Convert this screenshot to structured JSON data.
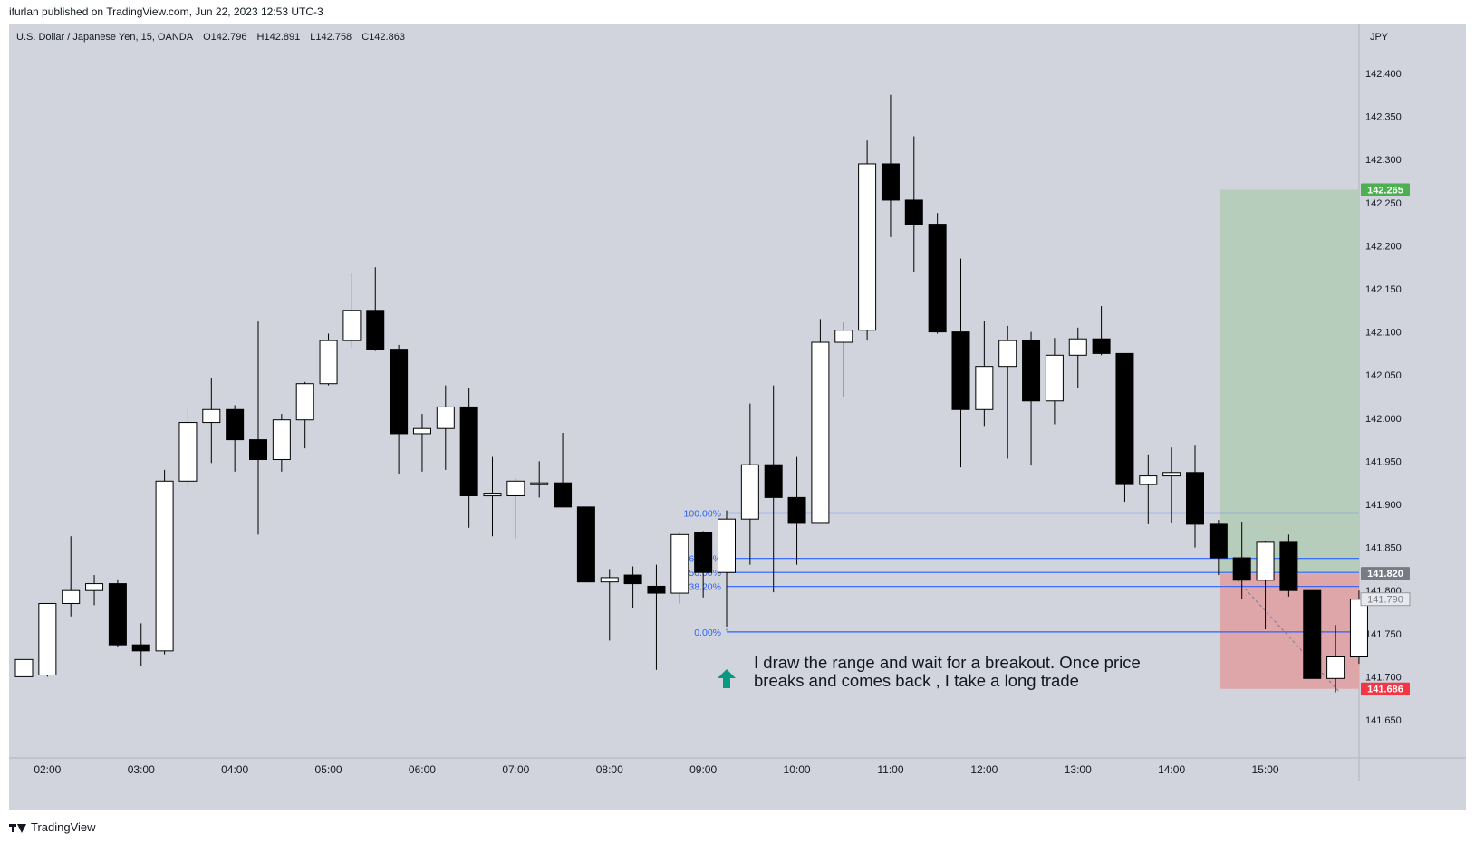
{
  "header": {
    "published_by": "ifurlan published on TradingView.com, Jun 22, 2023 12:53 UTC-3"
  },
  "symbol_bar": {
    "title": "U.S. Dollar / Japanese Yen, 15, OANDA",
    "open": "O142.796",
    "high": "H142.891",
    "low": "L142.758",
    "close": "C142.863"
  },
  "footer": {
    "brand": "TradingView"
  },
  "annotation": {
    "line1": "I draw the range and wait for a breakout. Once price",
    "line2": "breaks and comes back , I take a long trade",
    "icon": "arrow-up-icon"
  },
  "colors": {
    "background": "#d1d4dc",
    "bull_candle": "#ffffff",
    "bear_candle": "#000000",
    "fib_line": "#2962ff",
    "target_zone": "#b4ccb8",
    "stop_zone": "#e0a1a4",
    "target_label": "#4caf50",
    "stop_label": "#f23645",
    "entry_label": "#787b86",
    "arrow": "#089981"
  },
  "chart_data": {
    "type": "candlestick",
    "title": "",
    "xlabel": "",
    "ylabel": "",
    "y_axis_unit": "JPY",
    "ylim": [
      141.62,
      142.45
    ],
    "y_ticks": [
      "142.400",
      "142.350",
      "142.300",
      "142.250",
      "142.200",
      "142.150",
      "142.100",
      "142.050",
      "142.000",
      "141.950",
      "141.900",
      "141.850",
      "141.800",
      "141.750",
      "141.700",
      "141.650"
    ],
    "x_ticks": [
      "02:00",
      "03:00",
      "04:00",
      "05:00",
      "06:00",
      "07:00",
      "08:00",
      "09:00",
      "10:00",
      "11:00",
      "12:00",
      "13:00",
      "14:00",
      "15:00"
    ],
    "first_candle_time": "01:45",
    "interval_minutes": 15,
    "candles": [
      {
        "o": 141.7,
        "h": 141.732,
        "l": 141.682,
        "c": 141.72
      },
      {
        "o": 141.702,
        "h": 141.785,
        "l": 141.7,
        "c": 141.785
      },
      {
        "o": 141.785,
        "h": 141.863,
        "l": 141.77,
        "c": 141.8
      },
      {
        "o": 141.8,
        "h": 141.818,
        "l": 141.783,
        "c": 141.808
      },
      {
        "o": 141.808,
        "h": 141.813,
        "l": 141.735,
        "c": 141.737
      },
      {
        "o": 141.737,
        "h": 141.762,
        "l": 141.713,
        "c": 141.73
      },
      {
        "o": 141.73,
        "h": 141.94,
        "l": 141.726,
        "c": 141.927
      },
      {
        "o": 141.927,
        "h": 142.012,
        "l": 141.92,
        "c": 141.995
      },
      {
        "o": 141.995,
        "h": 142.047,
        "l": 141.948,
        "c": 142.01
      },
      {
        "o": 142.01,
        "h": 142.015,
        "l": 141.938,
        "c": 141.975
      },
      {
        "o": 141.975,
        "h": 142.112,
        "l": 141.865,
        "c": 141.952
      },
      {
        "o": 141.952,
        "h": 142.005,
        "l": 141.938,
        "c": 141.998
      },
      {
        "o": 141.998,
        "h": 142.042,
        "l": 141.965,
        "c": 142.04
      },
      {
        "o": 142.04,
        "h": 142.098,
        "l": 142.038,
        "c": 142.09
      },
      {
        "o": 142.09,
        "h": 142.168,
        "l": 142.082,
        "c": 142.125
      },
      {
        "o": 142.125,
        "h": 142.175,
        "l": 142.078,
        "c": 142.08
      },
      {
        "o": 142.08,
        "h": 142.085,
        "l": 141.935,
        "c": 141.982
      },
      {
        "o": 141.982,
        "h": 142.005,
        "l": 141.938,
        "c": 141.988
      },
      {
        "o": 141.988,
        "h": 142.038,
        "l": 141.94,
        "c": 142.013
      },
      {
        "o": 142.013,
        "h": 142.035,
        "l": 141.873,
        "c": 141.91
      },
      {
        "o": 141.91,
        "h": 141.955,
        "l": 141.863,
        "c": 141.912
      },
      {
        "o": 141.91,
        "h": 141.93,
        "l": 141.86,
        "c": 141.927
      },
      {
        "o": 141.925,
        "h": 141.95,
        "l": 141.908,
        "c": 141.925
      },
      {
        "o": 141.925,
        "h": 141.983,
        "l": 141.9,
        "c": 141.897
      },
      {
        "o": 141.897,
        "h": 141.897,
        "l": 141.81,
        "c": 141.81
      },
      {
        "o": 141.81,
        "h": 141.825,
        "l": 141.742,
        "c": 141.815
      },
      {
        "o": 141.818,
        "h": 141.828,
        "l": 141.78,
        "c": 141.808
      },
      {
        "o": 141.805,
        "h": 141.83,
        "l": 141.708,
        "c": 141.797
      },
      {
        "o": 141.797,
        "h": 141.867,
        "l": 141.785,
        "c": 141.865
      },
      {
        "o": 141.867,
        "h": 141.869,
        "l": 141.792,
        "c": 141.821
      },
      {
        "o": 141.821,
        "h": 141.893,
        "l": 141.758,
        "c": 141.883
      },
      {
        "o": 141.883,
        "h": 142.017,
        "l": 141.83,
        "c": 141.946
      },
      {
        "o": 141.946,
        "h": 142.038,
        "l": 141.798,
        "c": 141.908
      },
      {
        "o": 141.908,
        "h": 141.955,
        "l": 141.83,
        "c": 141.878
      },
      {
        "o": 141.878,
        "h": 142.115,
        "l": 141.878,
        "c": 142.088
      },
      {
        "o": 142.088,
        "h": 142.111,
        "l": 142.025,
        "c": 142.102
      },
      {
        "o": 142.102,
        "h": 142.322,
        "l": 142.09,
        "c": 142.295
      },
      {
        "o": 142.295,
        "h": 142.375,
        "l": 142.21,
        "c": 142.253
      },
      {
        "o": 142.253,
        "h": 142.327,
        "l": 142.17,
        "c": 142.225
      },
      {
        "o": 142.225,
        "h": 142.238,
        "l": 142.098,
        "c": 142.1
      },
      {
        "o": 142.1,
        "h": 142.185,
        "l": 141.943,
        "c": 142.01
      },
      {
        "o": 142.01,
        "h": 142.113,
        "l": 141.99,
        "c": 142.06
      },
      {
        "o": 142.06,
        "h": 142.107,
        "l": 141.953,
        "c": 142.09
      },
      {
        "o": 142.09,
        "h": 142.1,
        "l": 141.945,
        "c": 142.02
      },
      {
        "o": 142.02,
        "h": 142.093,
        "l": 141.993,
        "c": 142.073
      },
      {
        "o": 142.073,
        "h": 142.105,
        "l": 142.035,
        "c": 142.092
      },
      {
        "o": 142.092,
        "h": 142.13,
        "l": 142.073,
        "c": 142.075
      },
      {
        "o": 142.075,
        "h": 142.075,
        "l": 141.903,
        "c": 141.923
      },
      {
        "o": 141.923,
        "h": 141.958,
        "l": 141.877,
        "c": 141.933
      },
      {
        "o": 141.933,
        "h": 141.966,
        "l": 141.878,
        "c": 141.937
      },
      {
        "o": 141.937,
        "h": 141.968,
        "l": 141.85,
        "c": 141.877
      },
      {
        "o": 141.877,
        "h": 141.882,
        "l": 141.818,
        "c": 141.838
      },
      {
        "o": 141.838,
        "h": 141.88,
        "l": 141.79,
        "c": 141.812
      },
      {
        "o": 141.812,
        "h": 141.858,
        "l": 141.755,
        "c": 141.856
      },
      {
        "o": 141.856,
        "h": 141.865,
        "l": 141.793,
        "c": 141.8
      },
      {
        "o": 141.8,
        "h": 141.8,
        "l": 141.698,
        "c": 141.698
      },
      {
        "o": 141.698,
        "h": 141.76,
        "l": 141.682,
        "c": 141.723
      },
      {
        "o": 141.723,
        "h": 141.8,
        "l": 141.715,
        "c": 141.79
      }
    ],
    "fib_retracement": {
      "range_high": 141.89,
      "range_low": 141.752,
      "levels": [
        {
          "ratio": 1.0,
          "label": "100.00%"
        },
        {
          "ratio": 0.618,
          "label": "61.80%"
        },
        {
          "ratio": 0.5,
          "label": "50.00%"
        },
        {
          "ratio": 0.382,
          "label": "38.20%"
        },
        {
          "ratio": 0.0,
          "label": "0.00%"
        }
      ]
    },
    "long_position": {
      "entry": 141.82,
      "target": 142.265,
      "stop": 141.686,
      "entry_label": "141.820",
      "target_label": "142.265",
      "stop_label": "141.686",
      "current_price_label": "141.790"
    }
  }
}
